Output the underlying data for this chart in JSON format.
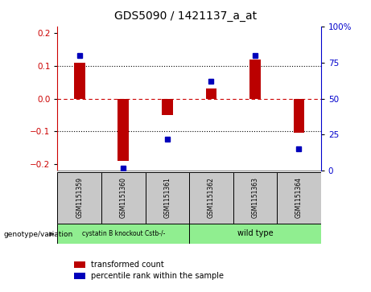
{
  "title": "GDS5090 / 1421137_a_at",
  "samples": [
    "GSM1151359",
    "GSM1151360",
    "GSM1151361",
    "GSM1151362",
    "GSM1151363",
    "GSM1151364"
  ],
  "red_values": [
    0.11,
    -0.19,
    -0.05,
    0.03,
    0.12,
    -0.105
  ],
  "blue_percentiles": [
    80,
    2,
    22,
    62,
    80,
    15
  ],
  "ylim_left": [
    -0.22,
    0.22
  ],
  "ylim_right": [
    0,
    100
  ],
  "yticks_left": [
    -0.2,
    -0.1,
    0,
    0.1,
    0.2
  ],
  "yticks_right": [
    0,
    25,
    50,
    75,
    100
  ],
  "group_labels": [
    "cystatin B knockout Cstb-/-",
    "wild type"
  ],
  "bar_color": "#bb0000",
  "dot_color": "#0000bb",
  "bar_width": 0.25,
  "legend_red_label": "transformed count",
  "legend_blue_label": "percentile rank within the sample",
  "genotype_label": "genotype/variation",
  "background_color": "#ffffff",
  "tick_color_left": "#cc0000",
  "tick_color_right": "#0000cc",
  "zero_line_color": "#cc0000",
  "dotted_line_color": "#000000",
  "sample_box_color": "#c8c8c8",
  "group1_color": "#90ee90",
  "group2_color": "#90ee90"
}
